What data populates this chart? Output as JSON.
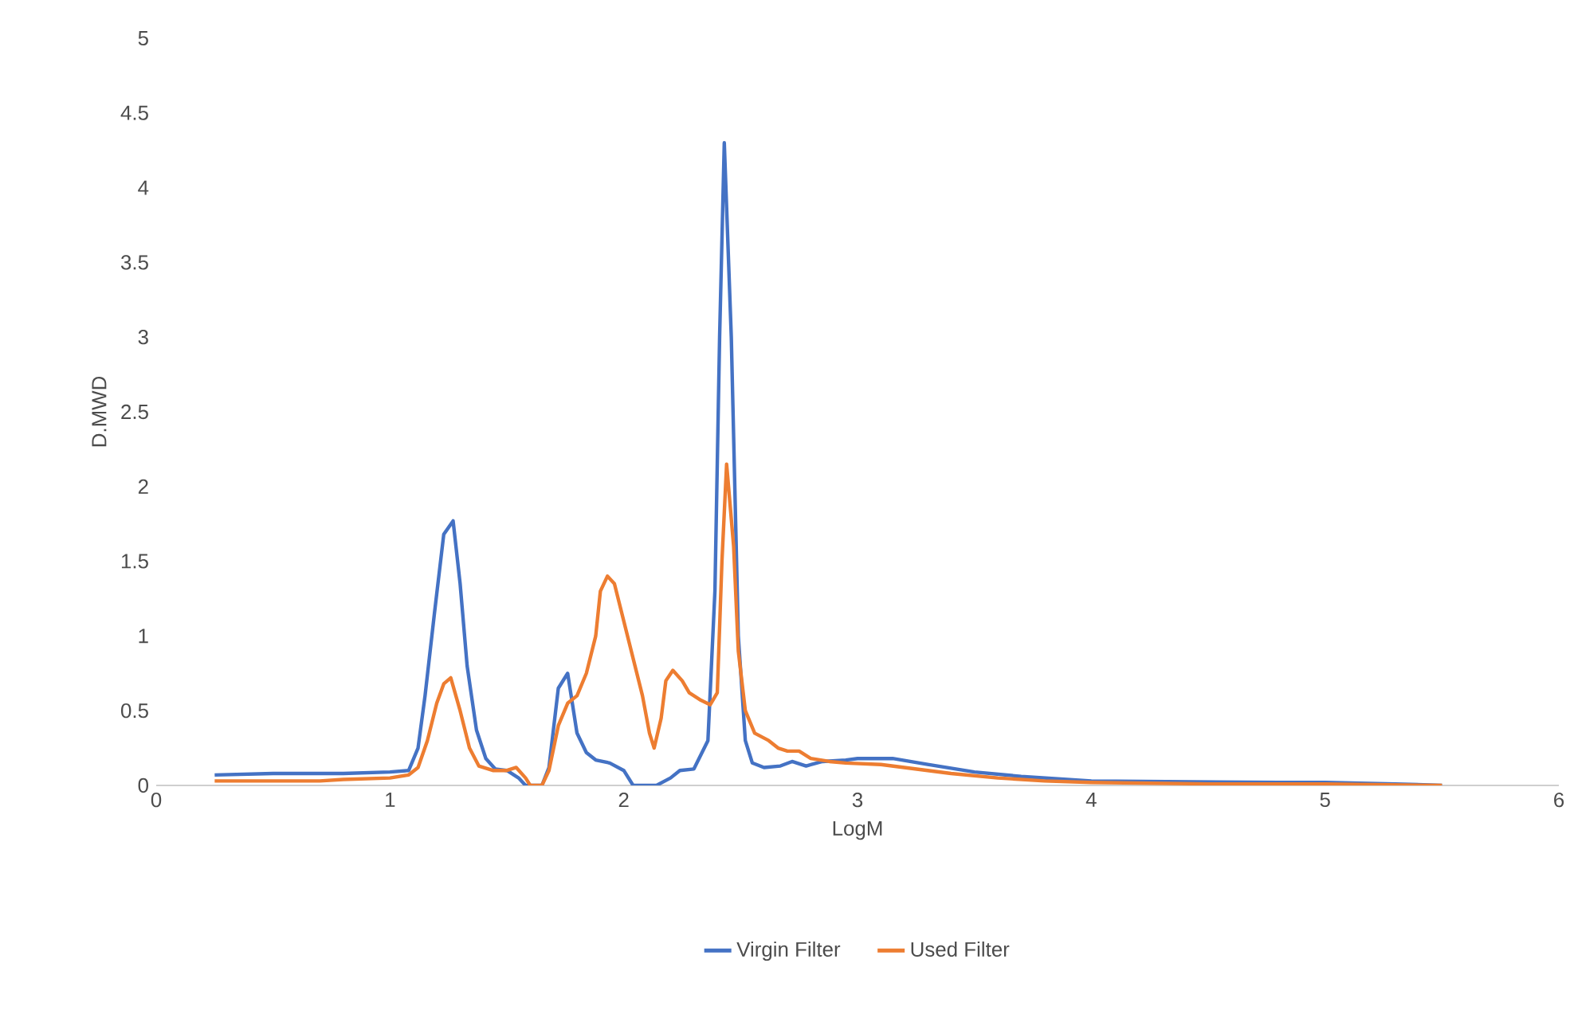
{
  "chart_data": {
    "type": "line",
    "xlabel": "LogM",
    "ylabel": "D.MWD",
    "xlim": [
      0,
      6
    ],
    "xticks": [
      0,
      1,
      2,
      3,
      4,
      5,
      6
    ],
    "ylim": [
      0,
      5
    ],
    "yticks": [
      0,
      0.5,
      1,
      1.5,
      2,
      2.5,
      3,
      3.5,
      4,
      4.5,
      5
    ],
    "grid": false,
    "legend": "bottom",
    "marker": "none",
    "line_style": "solid",
    "series": [
      {
        "name": "Virgin Filter",
        "color": "#4472c4",
        "x": [
          0.25,
          0.5,
          0.8,
          1.0,
          1.08,
          1.12,
          1.15,
          1.19,
          1.23,
          1.27,
          1.3,
          1.33,
          1.37,
          1.41,
          1.45,
          1.5,
          1.55,
          1.58,
          1.65,
          1.68,
          1.72,
          1.76,
          1.8,
          1.84,
          1.88,
          1.94,
          2.0,
          2.04,
          2.14,
          2.2,
          2.24,
          2.3,
          2.36,
          2.39,
          2.41,
          2.43,
          2.46,
          2.49,
          2.52,
          2.55,
          2.6,
          2.67,
          2.72,
          2.78,
          2.85,
          2.95,
          3.0,
          3.15,
          3.3,
          3.5,
          3.7,
          4.0,
          4.5,
          4.8,
          5.0,
          5.3,
          5.5
        ],
        "values": [
          0.07,
          0.08,
          0.08,
          0.09,
          0.1,
          0.25,
          0.6,
          1.15,
          1.68,
          1.77,
          1.35,
          0.8,
          0.37,
          0.18,
          0.11,
          0.1,
          0.05,
          0.0,
          0.0,
          0.12,
          0.65,
          0.75,
          0.35,
          0.22,
          0.17,
          0.15,
          0.1,
          0.0,
          0.0,
          0.05,
          0.1,
          0.11,
          0.3,
          1.3,
          3.0,
          4.3,
          3.0,
          1.0,
          0.3,
          0.15,
          0.12,
          0.13,
          0.16,
          0.13,
          0.16,
          0.17,
          0.18,
          0.18,
          0.14,
          0.09,
          0.06,
          0.03,
          null,
          0.02,
          0.02,
          0.01,
          0.0
        ]
      },
      {
        "name": "Used Filter",
        "color": "#ed7d31",
        "x": [
          0.25,
          0.7,
          0.8,
          1.0,
          1.08,
          1.12,
          1.16,
          1.2,
          1.23,
          1.26,
          1.3,
          1.34,
          1.38,
          1.44,
          1.5,
          1.54,
          1.58,
          1.6,
          1.65,
          1.68,
          1.72,
          1.76,
          1.8,
          1.84,
          1.88,
          1.9,
          1.93,
          1.96,
          2.0,
          2.04,
          2.08,
          2.11,
          2.13,
          2.16,
          2.18,
          2.21,
          2.25,
          2.28,
          2.33,
          2.37,
          2.4,
          2.42,
          2.44,
          2.47,
          2.49,
          2.52,
          2.56,
          2.62,
          2.66,
          2.7,
          2.75,
          2.8,
          2.88,
          2.95,
          3.1,
          3.2,
          3.4,
          3.6,
          3.8,
          4.0,
          4.5,
          5.0,
          5.5
        ],
        "values": [
          0.03,
          0.03,
          0.04,
          0.05,
          0.07,
          0.12,
          0.3,
          0.55,
          0.68,
          0.72,
          0.5,
          0.25,
          0.13,
          0.1,
          0.1,
          0.12,
          0.05,
          0.0,
          0.0,
          0.1,
          0.4,
          0.55,
          0.6,
          0.75,
          1.0,
          1.3,
          1.4,
          1.35,
          1.1,
          0.85,
          0.6,
          0.35,
          0.25,
          0.45,
          0.7,
          0.77,
          0.7,
          0.62,
          0.57,
          0.54,
          0.62,
          1.5,
          2.15,
          1.6,
          0.9,
          0.5,
          0.35,
          0.3,
          0.25,
          0.23,
          0.23,
          0.18,
          0.16,
          0.15,
          0.14,
          0.12,
          0.08,
          0.05,
          0.03,
          0.02,
          0.01,
          0.01,
          0.0
        ]
      }
    ]
  }
}
